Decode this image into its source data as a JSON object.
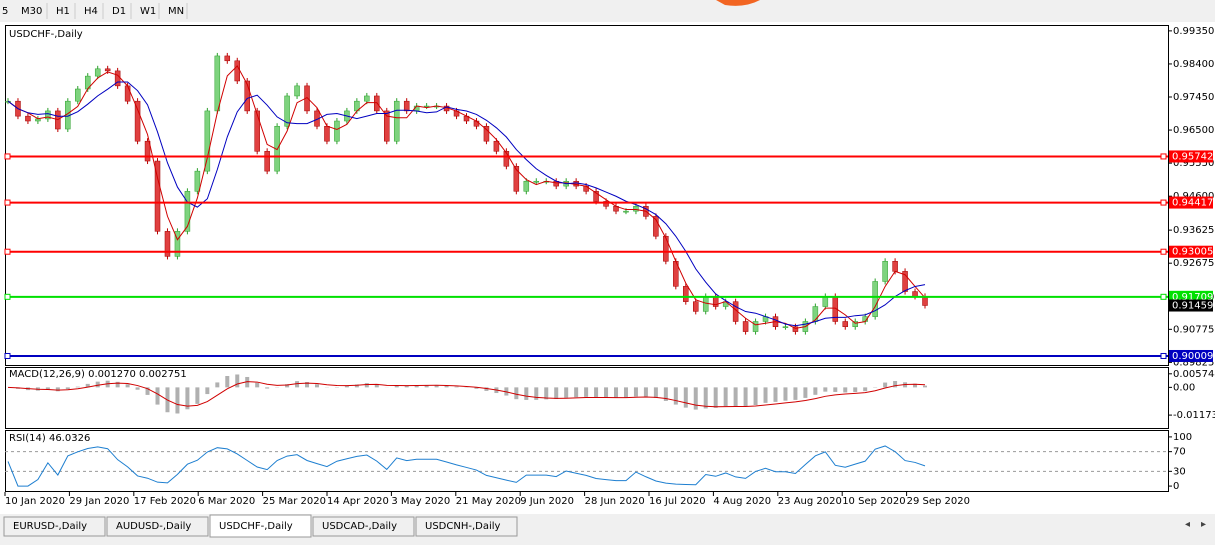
{
  "toolbar": {
    "items": [
      "5",
      "M30",
      "H1",
      "H4",
      "D1",
      "W1",
      "MN"
    ]
  },
  "main": {
    "symbol": "USDCHF-,Daily",
    "ohlc": [
      "0.91507",
      "0.91526",
      "0.91454",
      "0.91459"
    ],
    "ylim": [
      0.8975,
      0.9949
    ],
    "yticks": [
      {
        "value": 0.9935,
        "label": "0.99350"
      },
      {
        "value": 0.984,
        "label": "0.98400"
      },
      {
        "value": 0.9745,
        "label": "0.97450"
      },
      {
        "value": 0.965,
        "label": "0.96500"
      },
      {
        "value": 0.9555,
        "label": "0.95550"
      },
      {
        "value": 0.946,
        "label": "0.94600"
      },
      {
        "value": 0.93625,
        "label": "0.93625"
      },
      {
        "value": 0.92675,
        "label": "0.92675"
      },
      {
        "value": 0.917,
        "label": "0.91700"
      },
      {
        "value": 0.90775,
        "label": "0.90775"
      },
      {
        "value": 0.89825,
        "label": "0.89825"
      }
    ],
    "levels": [
      {
        "value": 0.95742,
        "label": "0.95742",
        "color": "#ff0000"
      },
      {
        "value": 0.94417,
        "label": "0.94417",
        "color": "#ff0000"
      },
      {
        "value": 0.93005,
        "label": "0.93005",
        "color": "#ff0000"
      },
      {
        "value": 0.91709,
        "label": "0.91709",
        "color": "#00e000"
      },
      {
        "value": 0.90009,
        "label": "0.90009",
        "color": "#0000c0"
      }
    ],
    "current": {
      "value": 0.91459,
      "label": "0.91459"
    },
    "closes": [
      0.9733,
      0.969,
      0.9676,
      0.9682,
      0.9705,
      0.9653,
      0.9733,
      0.9768,
      0.9805,
      0.9826,
      0.982,
      0.9777,
      0.9733,
      0.9618,
      0.9561,
      0.9359,
      0.9287,
      0.9359,
      0.9474,
      0.9532,
      0.9705,
      0.9863,
      0.9849,
      0.9791,
      0.9705,
      0.9589,
      0.9532,
      0.9661,
      0.9748,
      0.9777,
      0.9705,
      0.9661,
      0.9618,
      0.9676,
      0.9705,
      0.9733,
      0.9748,
      0.9705,
      0.9618,
      0.9733,
      0.9705,
      0.9719,
      0.9719,
      0.9719,
      0.9705,
      0.969,
      0.9676,
      0.9661,
      0.9618,
      0.9589,
      0.9546,
      0.9474,
      0.9503,
      0.9503,
      0.9503,
      0.9489,
      0.9503,
      0.9489,
      0.9474,
      0.9445,
      0.9431,
      0.9417,
      0.9417,
      0.9431,
      0.9402,
      0.9345,
      0.9273,
      0.9201,
      0.9157,
      0.9129,
      0.9172,
      0.9143,
      0.9157,
      0.91,
      0.9071,
      0.91,
      0.9114,
      0.9085,
      0.9085,
      0.9071,
      0.91,
      0.9143,
      0.9172,
      0.91,
      0.9085,
      0.91,
      0.9114,
      0.9215,
      0.9273,
      0.9244,
      0.9186,
      0.9172,
      0.9146
    ]
  },
  "macd": {
    "label": "MACD(12,26,9) 0.001270 0.002751",
    "ylim": [
      -0.0172,
      0.0082
    ],
    "yticks": [
      {
        "value": 0.005744,
        "label": "0.005744"
      },
      {
        "value": 0,
        "label": "0.00"
      },
      {
        "value": -0.011738,
        "label": "-0.011738"
      }
    ]
  },
  "rsi": {
    "label": "RSI(14) 46.0326",
    "ylim": [
      -10,
      112
    ],
    "yticks": [
      100,
      70,
      30,
      0
    ]
  },
  "dates": [
    "10 Jan 2020",
    "29 Jan 2020",
    "17 Feb 2020",
    "6 Mar 2020",
    "25 Mar 2020",
    "14 Apr 2020",
    "3 May 2020",
    "21 May 2020",
    "9 Jun 2020",
    "28 Jun 2020",
    "16 Jul 2020",
    "4 Aug 2020",
    "23 Aug 2020",
    "10 Sep 2020",
    "29 Sep 2020"
  ],
  "tabs": {
    "items": [
      "EURUSD-,Daily",
      "AUDUSD-,Daily",
      "USDCHF-,Daily",
      "USDCAD-,Daily",
      "USDCNH-,Daily"
    ],
    "active": 2
  }
}
